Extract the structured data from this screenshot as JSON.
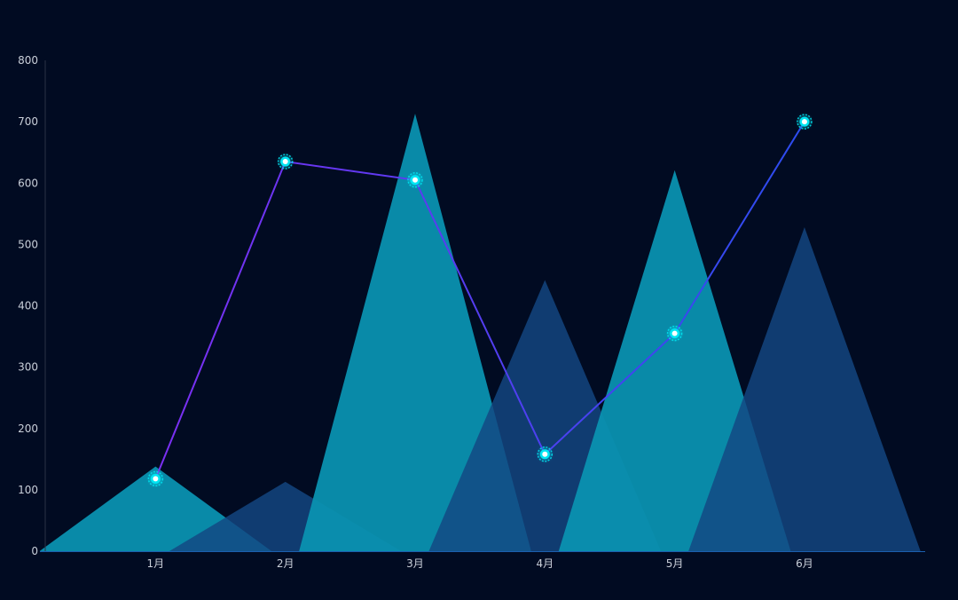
{
  "chart_data": {
    "type": "line",
    "categories": [
      "1月",
      "2月",
      "3月",
      "4月",
      "5月",
      "6月"
    ],
    "y_ticks": [
      0,
      100,
      200,
      300,
      400,
      500,
      600,
      700,
      800
    ],
    "ylim": [
      0,
      800
    ],
    "grid": false,
    "legend": "none",
    "title": "",
    "xlabel": "",
    "ylabel": "",
    "series": [
      {
        "type": "pictorial-triangle",
        "values": [
          138,
          113,
          713,
          442,
          621,
          528
        ],
        "colors": [
          "#0a93b0",
          "#134782"
        ]
      },
      {
        "type": "line",
        "values": [
          118,
          635,
          605,
          158,
          355,
          700
        ],
        "colors": [
          "#7b2ff2",
          "#2c4cef"
        ],
        "marker_color": "#00e5f2"
      }
    ]
  }
}
